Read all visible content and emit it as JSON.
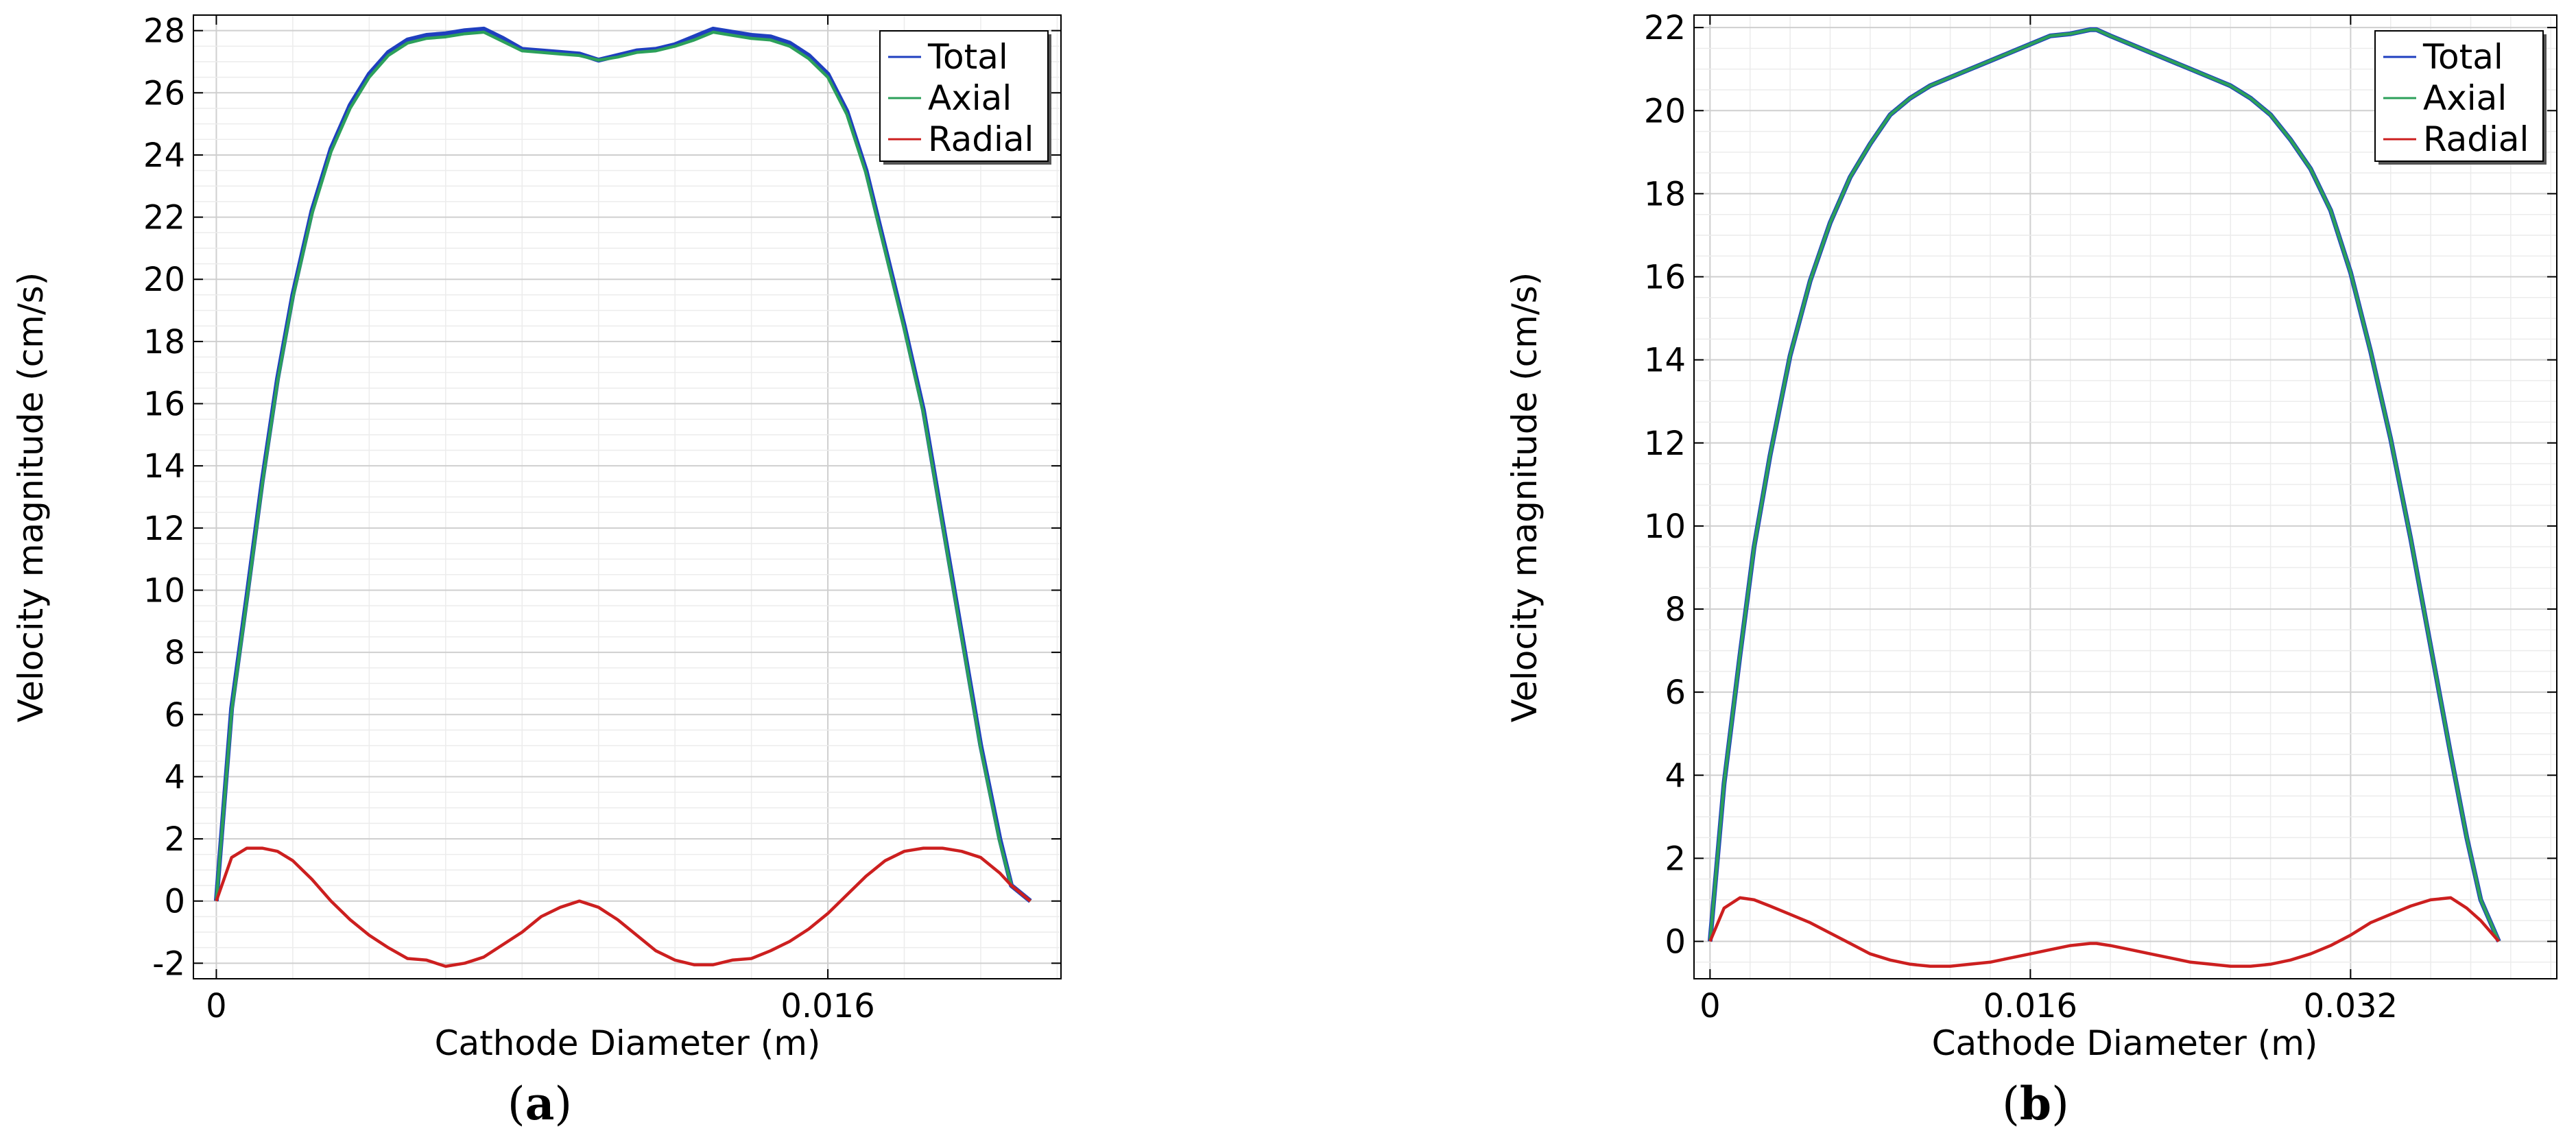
{
  "chart_data": [
    {
      "type": "line",
      "panel_label": "a",
      "xlabel": "Cathode Diameter (m)",
      "ylabel": "Velocity magnitude (cm/s)",
      "xlim": [
        -0.0006,
        0.0221
      ],
      "ylim": [
        -2.5,
        28.5
      ],
      "x_ticks": [
        0,
        0.016
      ],
      "x_tick_labels": [
        "0",
        "0.016"
      ],
      "y_ticks": [
        -2,
        0,
        2,
        4,
        6,
        8,
        10,
        12,
        14,
        16,
        18,
        20,
        22,
        24,
        26,
        28
      ],
      "grid": true,
      "legend": {
        "position": "top-right",
        "entries": [
          "Total",
          "Axial",
          "Radial"
        ]
      },
      "series": [
        {
          "name": "Total",
          "color": "#1f3fbf",
          "x": [
            0,
            0.0004,
            0.0008,
            0.0012,
            0.0016,
            0.002,
            0.0025,
            0.003,
            0.0035,
            0.004,
            0.0045,
            0.005,
            0.0055,
            0.006,
            0.0065,
            0.007,
            0.0075,
            0.008,
            0.0085,
            0.009,
            0.0095,
            0.01,
            0.0105,
            0.011,
            0.0115,
            0.012,
            0.0125,
            0.013,
            0.0135,
            0.014,
            0.0145,
            0.015,
            0.0155,
            0.016,
            0.0165,
            0.017,
            0.0175,
            0.018,
            0.0185,
            0.019,
            0.0195,
            0.02,
            0.0205,
            0.0208,
            0.0213
          ],
          "values": [
            0,
            6.2,
            9.8,
            13.5,
            16.8,
            19.5,
            22.2,
            24.2,
            25.6,
            26.6,
            27.3,
            27.7,
            27.85,
            27.9,
            28.0,
            28.05,
            27.75,
            27.4,
            27.35,
            27.3,
            27.25,
            27.05,
            27.2,
            27.35,
            27.4,
            27.55,
            27.8,
            28.05,
            27.95,
            27.85,
            27.8,
            27.6,
            27.2,
            26.6,
            25.4,
            23.5,
            21.0,
            18.5,
            15.8,
            12.2,
            8.6,
            5.0,
            2.0,
            0.5,
            0
          ],
          "y_override_note": ""
        },
        {
          "name": "Axial",
          "color": "#2ca05a",
          "x": [
            0,
            0.0004,
            0.0008,
            0.0012,
            0.0016,
            0.002,
            0.0025,
            0.003,
            0.0035,
            0.004,
            0.0045,
            0.005,
            0.0055,
            0.006,
            0.0065,
            0.007,
            0.0075,
            0.008,
            0.0085,
            0.009,
            0.0095,
            0.01,
            0.0105,
            0.011,
            0.0115,
            0.012,
            0.0125,
            0.013,
            0.0135,
            0.014,
            0.0145,
            0.015,
            0.0155,
            0.016,
            0.0165,
            0.017,
            0.0175,
            0.018,
            0.0185,
            0.019,
            0.0195,
            0.02,
            0.0205,
            0.0208,
            0.0213
          ],
          "values": [
            0,
            6.1,
            9.7,
            13.4,
            16.7,
            19.4,
            22.1,
            24.1,
            25.5,
            26.5,
            27.2,
            27.6,
            27.75,
            27.8,
            27.9,
            27.95,
            27.65,
            27.35,
            27.3,
            27.25,
            27.2,
            27.05,
            27.15,
            27.3,
            27.35,
            27.5,
            27.7,
            27.95,
            27.85,
            27.75,
            27.7,
            27.5,
            27.1,
            26.5,
            25.3,
            23.4,
            20.9,
            18.4,
            15.7,
            12.1,
            8.5,
            4.9,
            1.9,
            0.5,
            0
          ]
        },
        {
          "name": "Radial",
          "color": "#cc1f1f",
          "x": [
            0,
            0.0004,
            0.0008,
            0.0012,
            0.0016,
            0.002,
            0.0025,
            0.003,
            0.0035,
            0.004,
            0.0045,
            0.005,
            0.0055,
            0.006,
            0.0065,
            0.007,
            0.0075,
            0.008,
            0.0085,
            0.009,
            0.0095,
            0.01,
            0.0105,
            0.011,
            0.0115,
            0.012,
            0.0125,
            0.013,
            0.0135,
            0.014,
            0.0145,
            0.015,
            0.0155,
            0.016,
            0.0165,
            0.017,
            0.0175,
            0.018,
            0.0185,
            0.019,
            0.0195,
            0.02,
            0.0205,
            0.0208,
            0.0213
          ],
          "values": [
            0,
            1.4,
            1.7,
            1.7,
            1.6,
            1.3,
            0.7,
            0.0,
            -0.6,
            -1.1,
            -1.5,
            -1.85,
            -1.9,
            -2.1,
            -2.0,
            -1.8,
            -1.4,
            -1.0,
            -0.5,
            -0.2,
            0.0,
            -0.2,
            -0.6,
            -1.1,
            -1.6,
            -1.9,
            -2.05,
            -2.05,
            -1.9,
            -1.85,
            -1.6,
            -1.3,
            -0.9,
            -0.4,
            0.2,
            0.8,
            1.3,
            1.6,
            1.7,
            1.7,
            1.6,
            1.4,
            0.9,
            0.5,
            0
          ]
        }
      ]
    },
    {
      "type": "line",
      "panel_label": "b",
      "xlabel": "Cathode Diameter (m)",
      "ylabel": "Velocity magnitude (cm/s)",
      "xlim": [
        -0.0008,
        0.0423
      ],
      "ylim": [
        -0.9,
        22.3
      ],
      "x_ticks": [
        0,
        0.016,
        0.032
      ],
      "x_tick_labels": [
        "0",
        "0.016",
        "0.032"
      ],
      "y_ticks": [
        0,
        2,
        4,
        6,
        8,
        10,
        12,
        14,
        16,
        18,
        20,
        22
      ],
      "grid": true,
      "legend": {
        "position": "top-right",
        "entries": [
          "Total",
          "Axial",
          "Radial"
        ]
      },
      "series": [
        {
          "name": "Total",
          "color": "#1f3fbf",
          "x": [
            0,
            0.0007,
            0.0015,
            0.0022,
            0.003,
            0.004,
            0.005,
            0.006,
            0.007,
            0.008,
            0.009,
            0.01,
            0.011,
            0.012,
            0.013,
            0.014,
            0.015,
            0.016,
            0.017,
            0.018,
            0.019,
            0.0193,
            0.02,
            0.021,
            0.022,
            0.023,
            0.024,
            0.025,
            0.026,
            0.027,
            0.028,
            0.029,
            0.03,
            0.031,
            0.032,
            0.033,
            0.034,
            0.035,
            0.036,
            0.037,
            0.0378,
            0.0385,
            0.0394
          ],
          "values": [
            0,
            3.8,
            6.9,
            9.5,
            11.7,
            14.1,
            15.9,
            17.3,
            18.4,
            19.2,
            19.9,
            20.3,
            20.6,
            20.8,
            21.0,
            21.2,
            21.4,
            21.6,
            21.8,
            21.85,
            21.95,
            21.95,
            21.8,
            21.6,
            21.4,
            21.2,
            21.0,
            20.8,
            20.6,
            20.3,
            19.9,
            19.3,
            18.6,
            17.6,
            16.1,
            14.2,
            12.1,
            9.7,
            7.1,
            4.5,
            2.5,
            1.0,
            0
          ]
        },
        {
          "name": "Axial",
          "color": "#2ca05a",
          "x": [
            0,
            0.0007,
            0.0015,
            0.0022,
            0.003,
            0.004,
            0.005,
            0.006,
            0.007,
            0.008,
            0.009,
            0.01,
            0.011,
            0.012,
            0.013,
            0.014,
            0.015,
            0.016,
            0.017,
            0.018,
            0.019,
            0.0193,
            0.02,
            0.021,
            0.022,
            0.023,
            0.024,
            0.025,
            0.026,
            0.027,
            0.028,
            0.029,
            0.03,
            0.031,
            0.032,
            0.033,
            0.034,
            0.035,
            0.036,
            0.037,
            0.0378,
            0.0385,
            0.0394
          ],
          "values": [
            0,
            3.8,
            6.9,
            9.5,
            11.7,
            14.1,
            15.9,
            17.3,
            18.4,
            19.2,
            19.9,
            20.3,
            20.6,
            20.8,
            21.0,
            21.2,
            21.4,
            21.6,
            21.8,
            21.85,
            21.95,
            21.95,
            21.8,
            21.6,
            21.4,
            21.2,
            21.0,
            20.8,
            20.6,
            20.3,
            19.9,
            19.3,
            18.6,
            17.6,
            16.1,
            14.2,
            12.1,
            9.7,
            7.1,
            4.5,
            2.5,
            1.0,
            0
          ]
        },
        {
          "name": "Radial",
          "color": "#cc1f1f",
          "x": [
            0,
            0.0007,
            0.0015,
            0.0022,
            0.003,
            0.004,
            0.005,
            0.006,
            0.007,
            0.008,
            0.009,
            0.01,
            0.011,
            0.012,
            0.013,
            0.014,
            0.015,
            0.016,
            0.017,
            0.018,
            0.019,
            0.0193,
            0.02,
            0.021,
            0.022,
            0.023,
            0.024,
            0.025,
            0.026,
            0.027,
            0.028,
            0.029,
            0.03,
            0.031,
            0.032,
            0.033,
            0.034,
            0.035,
            0.036,
            0.037,
            0.0378,
            0.0385,
            0.0394
          ],
          "values": [
            0,
            0.8,
            1.05,
            1.0,
            0.85,
            0.65,
            0.45,
            0.2,
            -0.05,
            -0.3,
            -0.45,
            -0.55,
            -0.6,
            -0.6,
            -0.55,
            -0.5,
            -0.4,
            -0.3,
            -0.2,
            -0.1,
            -0.05,
            -0.05,
            -0.1,
            -0.2,
            -0.3,
            -0.4,
            -0.5,
            -0.55,
            -0.6,
            -0.6,
            -0.55,
            -0.45,
            -0.3,
            -0.1,
            0.15,
            0.45,
            0.65,
            0.85,
            1.0,
            1.05,
            0.8,
            0.5,
            0
          ]
        }
      ]
    }
  ]
}
